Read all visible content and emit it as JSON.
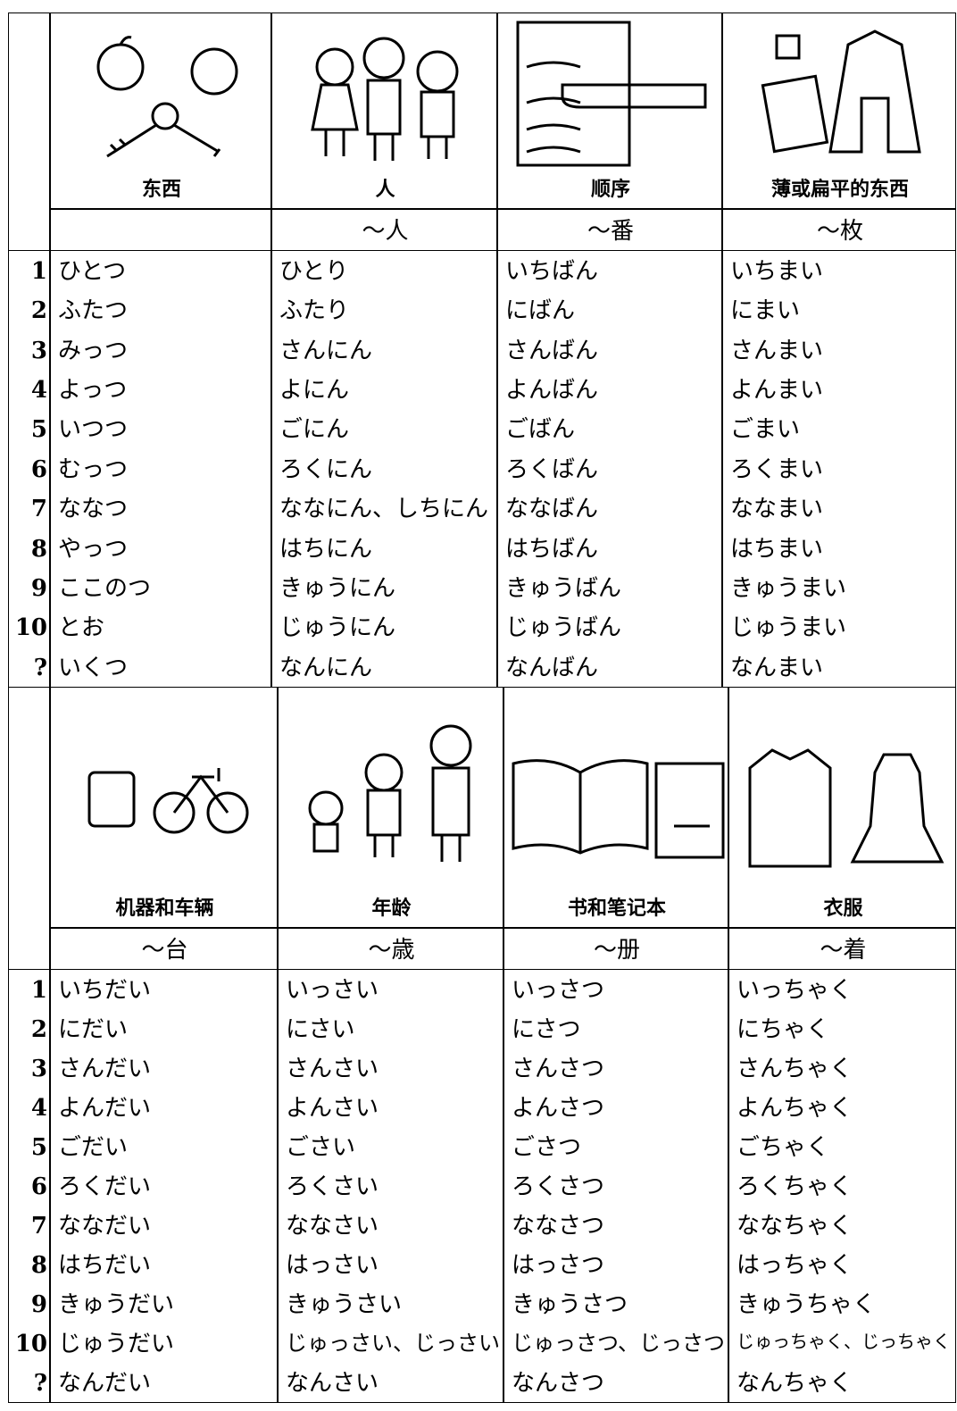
{
  "tables": [
    {
      "columns": [
        {
          "label": "东西"
        },
        {
          "label": "人",
          "counter": "～人"
        },
        {
          "label": "顺序",
          "counter": "～番"
        },
        {
          "label": "薄或扁平的东西",
          "counter": "～枚"
        }
      ],
      "rows": [
        {
          "number": "1",
          "cells": [
            "ひとつ",
            "ひとり",
            "いちばん",
            "いちまい"
          ]
        },
        {
          "number": "2",
          "cells": [
            "ふたつ",
            "ふたり",
            "にばん",
            "にまい"
          ]
        },
        {
          "number": "3",
          "cells": [
            "みっつ",
            "さんにん",
            "さんばん",
            "さんまい"
          ]
        },
        {
          "number": "4",
          "cells": [
            "よっつ",
            "よにん",
            "よんばん",
            "よんまい"
          ]
        },
        {
          "number": "5",
          "cells": [
            "いつつ",
            "ごにん",
            "ごばん",
            "ごまい"
          ]
        },
        {
          "number": "6",
          "cells": [
            "むっつ",
            "ろくにん",
            "ろくばん",
            "ろくまい"
          ]
        },
        {
          "number": "7",
          "cells": [
            "ななつ",
            "ななにん、しちにん",
            "ななばん",
            "ななまい"
          ]
        },
        {
          "number": "8",
          "cells": [
            "やっつ",
            "はちにん",
            "はちばん",
            "はちまい"
          ]
        },
        {
          "number": "9",
          "cells": [
            "ここのつ",
            "きゅうにん",
            "きゅうばん",
            "きゅうまい"
          ]
        },
        {
          "number": "10",
          "cells": [
            "とお",
            "じゅうにん",
            "じゅうばん",
            "じゅうまい"
          ]
        },
        {
          "number": "?",
          "cells": [
            "いくつ",
            "なんにん",
            "なんばん",
            "なんまい"
          ]
        }
      ]
    },
    {
      "columns": [
        {
          "label": "机器和车辆",
          "counter": "～台"
        },
        {
          "label": "年龄",
          "counter": "～歳"
        },
        {
          "label": "书和笔记本",
          "counter": "～册"
        },
        {
          "label": "衣服",
          "counter": "～着"
        }
      ],
      "rows": [
        {
          "number": "1",
          "cells": [
            "いちだい",
            "いっさい",
            "いっさつ",
            "いっちゃく"
          ]
        },
        {
          "number": "2",
          "cells": [
            "にだい",
            "にさい",
            "にさつ",
            "にちゃく"
          ]
        },
        {
          "number": "3",
          "cells": [
            "さんだい",
            "さんさい",
            "さんさつ",
            "さんちゃく"
          ]
        },
        {
          "number": "4",
          "cells": [
            "よんだい",
            "よんさい",
            "よんさつ",
            "よんちゃく"
          ]
        },
        {
          "number": "5",
          "cells": [
            "ごだい",
            "ごさい",
            "ごさつ",
            "ごちゃく"
          ]
        },
        {
          "number": "6",
          "cells": [
            "ろくだい",
            "ろくさい",
            "ろくさつ",
            "ろくちゃく"
          ]
        },
        {
          "number": "7",
          "cells": [
            "ななだい",
            "ななさい",
            "ななさつ",
            "ななちゃく"
          ]
        },
        {
          "number": "8",
          "cells": [
            "はちだい",
            "はっさい",
            "はっさつ",
            "はっちゃく"
          ]
        },
        {
          "number": "9",
          "cells": [
            "きゅうだい",
            "きゅうさい",
            "きゅうさつ",
            "きゅうちゃく"
          ]
        },
        {
          "number": "10",
          "cells": [
            "じゅうだい",
            "じゅっさい、じっさい",
            "じゅっさつ、じっさつ",
            "じゅっちゃく、じっちゃく"
          ]
        },
        {
          "number": "?",
          "cells": [
            "なんだい",
            "なんさい",
            "なんさつ",
            "なんちゃく"
          ]
        }
      ]
    }
  ]
}
